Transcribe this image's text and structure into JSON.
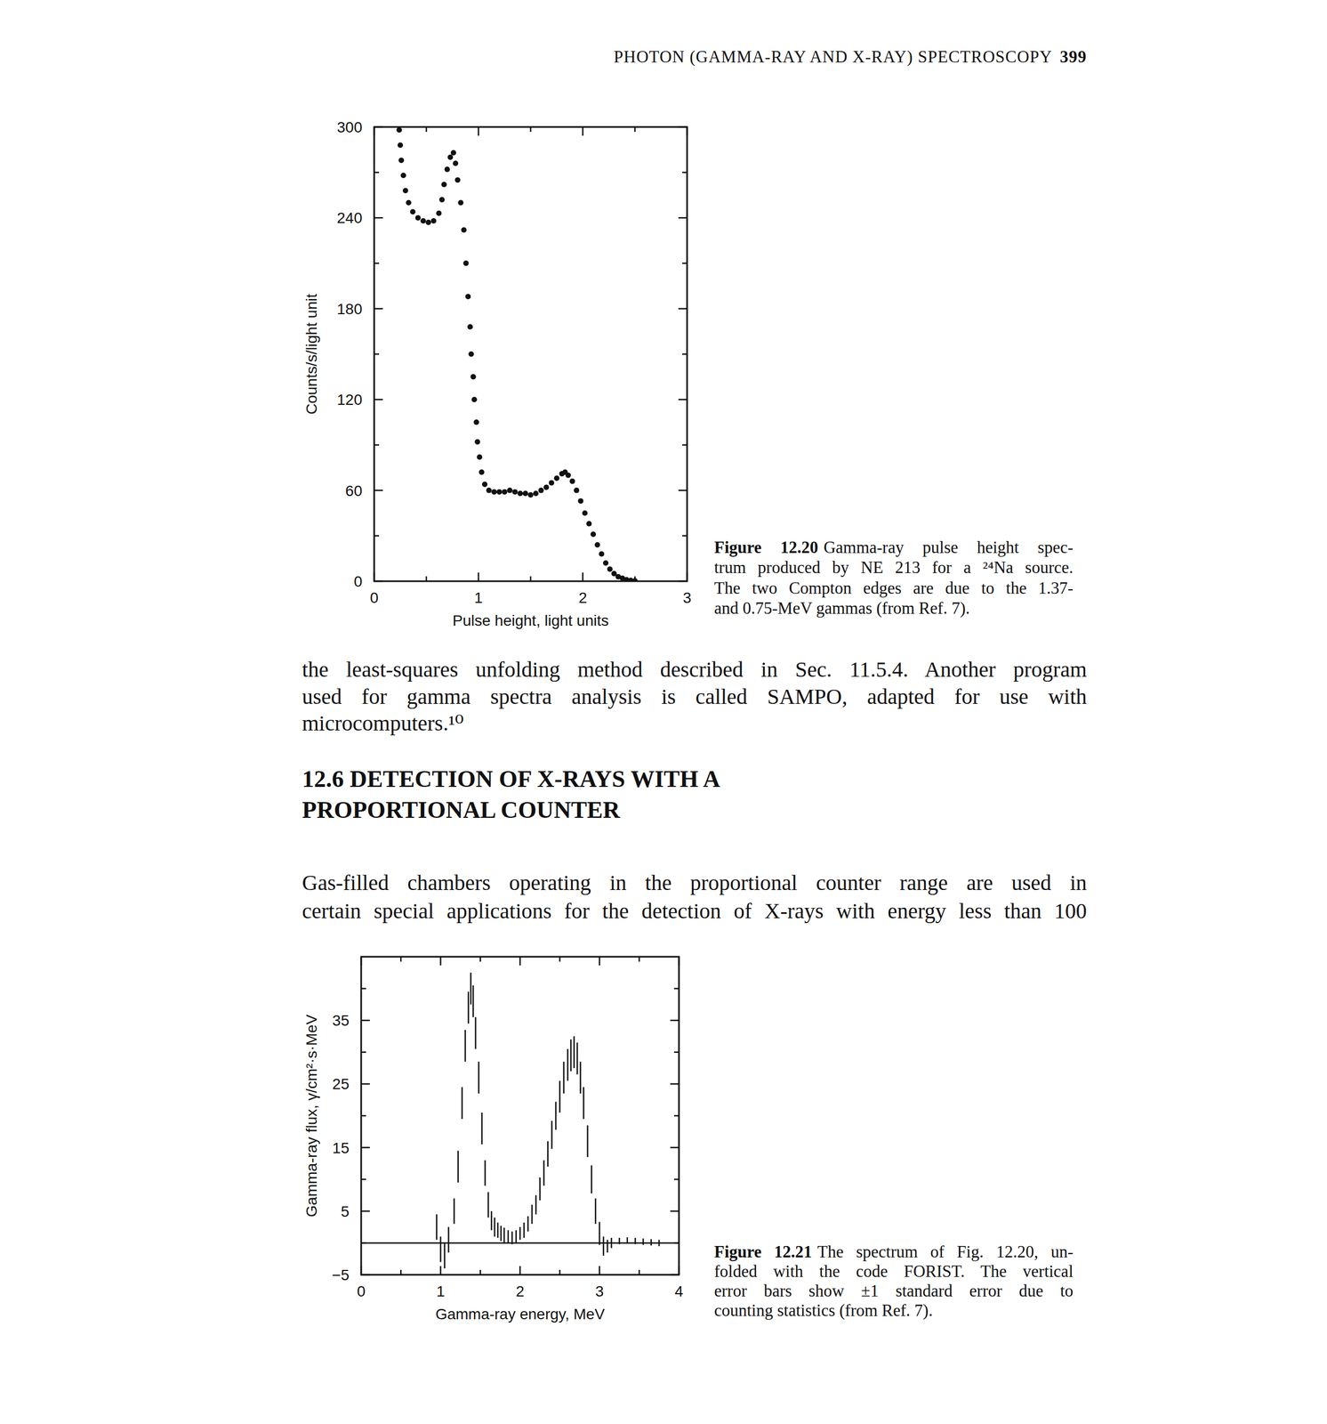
{
  "page": {
    "header": "PHOTON (GAMMA-RAY AND X-RAY) SPECTROSCOPY",
    "page_number": "399",
    "paragraph_1": [
      "the least-squares unfolding method described in Sec. 11.5.4. Another program",
      "used for gamma spectra analysis is called SAMPO, adapted for use with",
      "microcomputers.¹⁰"
    ],
    "heading": [
      "12.6 DETECTION OF X-RAYS WITH A",
      "PROPORTIONAL COUNTER"
    ],
    "paragraph_2": [
      "Gas-filled chambers operating in the proportional counter range are used in",
      "certain special applications for the detection of X-rays with energy less than 100"
    ],
    "captions": [
      {
        "label": "Figure 12.20",
        "lines": [
          "Gamma-ray pulse height spec-",
          "trum produced by NE 213 for a ²⁴Na source.",
          "The two Compton edges are due to the 1.37-",
          "and 0.75-MeV gammas (from Ref. 7)."
        ]
      },
      {
        "label": "Figure 12.21",
        "lines": [
          "The spectrum of Fig. 12.20, un-",
          "folded with the code FORIST. The vertical",
          "error bars show ±1 standard error due to",
          "counting statistics (from Ref. 7)."
        ]
      }
    ]
  },
  "chart_data": [
    {
      "type": "scatter",
      "x_label": "Pulse height, light units",
      "y_label": "Counts/s/light unit",
      "marker": "circle",
      "color": "#111111",
      "x": [
        0.24,
        0.25,
        0.26,
        0.28,
        0.3,
        0.33,
        0.37,
        0.42,
        0.47,
        0.52,
        0.57,
        0.62,
        0.65,
        0.67,
        0.7,
        0.73,
        0.76,
        0.78,
        0.8,
        0.83,
        0.86,
        0.88,
        0.9,
        0.92,
        0.93,
        0.95,
        0.96,
        0.98,
        0.99,
        1.01,
        1.03,
        1.06,
        1.1,
        1.15,
        1.2,
        1.25,
        1.3,
        1.35,
        1.4,
        1.45,
        1.5,
        1.55,
        1.6,
        1.65,
        1.7,
        1.75,
        1.8,
        1.83,
        1.86,
        1.9,
        1.94,
        1.98,
        2.02,
        2.06,
        2.1,
        2.14,
        2.18,
        2.22,
        2.26,
        2.3,
        2.34,
        2.38,
        2.42,
        2.46,
        2.5
      ],
      "values": [
        298,
        288,
        278,
        268,
        258,
        250,
        244,
        240,
        238,
        237,
        238,
        243,
        252,
        262,
        272,
        280,
        283,
        276,
        265,
        250,
        232,
        210,
        188,
        168,
        150,
        135,
        120,
        105,
        92,
        82,
        72,
        64,
        60,
        59,
        59,
        59,
        60,
        59,
        58,
        58,
        57,
        58,
        60,
        62,
        65,
        68,
        71,
        72,
        70,
        66,
        60,
        53,
        45,
        38,
        31,
        24,
        18,
        12,
        8,
        5,
        3,
        2,
        1,
        0.5,
        0.3
      ],
      "xlim": [
        0,
        3
      ],
      "ylim": [
        0,
        300
      ],
      "xticks": [
        0,
        1,
        2,
        3
      ],
      "yticks": [
        0,
        60,
        120,
        180,
        240,
        300
      ],
      "minor_xticks": [
        0.5,
        1.5,
        2.5
      ],
      "minor_yticks": [
        30,
        90,
        150,
        210,
        270
      ]
    },
    {
      "type": "scatter",
      "x_label": "Gamma-ray energy, MeV",
      "y_label": "Gamma-ray flux, γ/cm²·s·MeV",
      "marker": "none",
      "color": "#111111",
      "x": [
        0.95,
        1.0,
        1.05,
        1.1,
        1.17,
        1.22,
        1.27,
        1.31,
        1.35,
        1.38,
        1.41,
        1.44,
        1.48,
        1.52,
        1.56,
        1.6,
        1.64,
        1.68,
        1.72,
        1.76,
        1.8,
        1.85,
        1.9,
        1.95,
        2.0,
        2.05,
        2.1,
        2.15,
        2.2,
        2.25,
        2.3,
        2.35,
        2.4,
        2.45,
        2.5,
        2.55,
        2.6,
        2.64,
        2.68,
        2.72,
        2.76,
        2.8,
        2.85,
        2.9,
        2.95,
        3.0,
        3.05,
        3.1,
        3.15,
        3.25,
        3.35,
        3.45,
        3.55,
        3.65,
        3.75
      ],
      "values": [
        2.5,
        -1,
        -2,
        0.5,
        5,
        12,
        22,
        31,
        37,
        40,
        38,
        33,
        26,
        18,
        11,
        6,
        3.5,
        2.5,
        2,
        1.5,
        1.2,
        1,
        0.8,
        1,
        1.5,
        2,
        3,
        4.5,
        6,
        8.5,
        11,
        14,
        17,
        20,
        23,
        26,
        28,
        29.5,
        30,
        29,
        26,
        22,
        16,
        10,
        5,
        1.5,
        -0.5,
        -0.5,
        0,
        0.3,
        0.4,
        0.3,
        0.2,
        0.1,
        0
      ],
      "errors": [
        2,
        2,
        2,
        2,
        2,
        2.5,
        2.5,
        2.5,
        2.5,
        2.5,
        2.5,
        2.5,
        2.5,
        2.5,
        2,
        2,
        1.5,
        1.5,
        1.2,
        1.2,
        1.2,
        1,
        1,
        1,
        1,
        1.2,
        1.2,
        1.5,
        1.5,
        1.8,
        2,
        2,
        2.2,
        2.2,
        2.5,
        2.5,
        2.5,
        2.5,
        2.5,
        2.5,
        2.5,
        2.5,
        2.5,
        2.2,
        2,
        1.8,
        1.5,
        1,
        0.8,
        0.5,
        0.5,
        0.5,
        0.5,
        0.5,
        0.5
      ],
      "hline": 0,
      "xlim": [
        0,
        4
      ],
      "ylim": [
        -5,
        45
      ],
      "xticks": [
        0,
        1,
        2,
        3,
        4
      ],
      "yticks": [
        -5,
        5,
        15,
        25,
        35
      ],
      "minor_xticks": [
        0.5,
        1.5,
        2.5,
        3.5
      ],
      "minor_yticks": [
        0,
        10,
        20,
        30,
        40
      ]
    }
  ]
}
